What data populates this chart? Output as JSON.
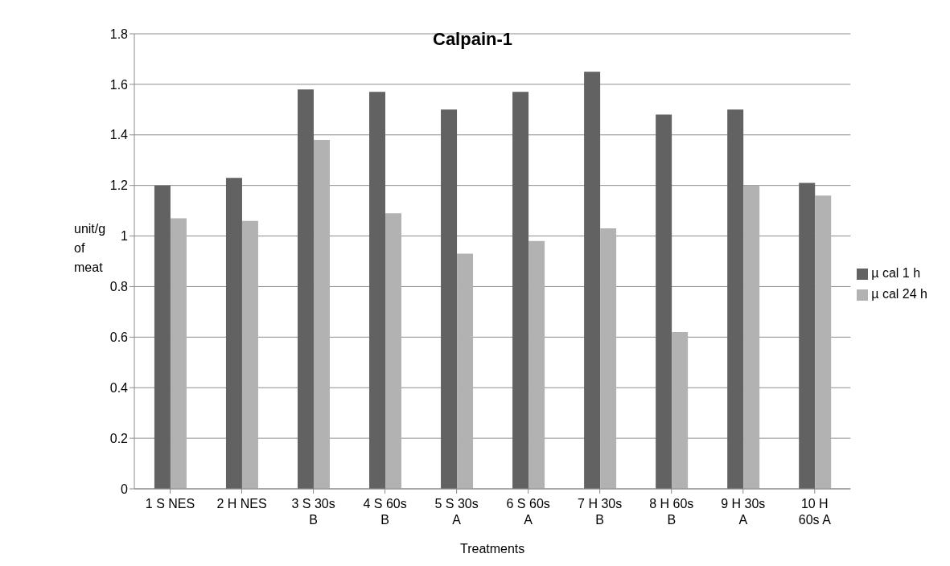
{
  "chart_data": {
    "type": "bar",
    "title": "Calpain-1",
    "xlabel": "Treatments",
    "ylabel": "unit/g of meat",
    "categories": [
      "1 S NES",
      "2 H NES",
      "3 S 30s B",
      "4 S 60s B",
      "5 S 30s A",
      "6 S 60s A",
      "7 H 30s B",
      "8 H 60s B",
      "9 H 30s A",
      "10 H 60s A"
    ],
    "series": [
      {
        "name": "µ cal 1 h",
        "color": "#626262",
        "values": [
          1.2,
          1.23,
          1.58,
          1.57,
          1.5,
          1.57,
          1.65,
          1.48,
          1.5,
          1.21
        ]
      },
      {
        "name": "µ cal 24 h",
        "color": "#b2b2b2",
        "values": [
          1.07,
          1.06,
          1.38,
          1.09,
          0.93,
          0.98,
          1.03,
          0.62,
          1.2,
          1.16
        ]
      }
    ],
    "ylim": [
      0,
      1.8
    ],
    "yticks": [
      0,
      0.2,
      0.4,
      0.6,
      0.8,
      1,
      1.2,
      1.4,
      1.6,
      1.8
    ],
    "grid": "y",
    "legend": "right"
  }
}
